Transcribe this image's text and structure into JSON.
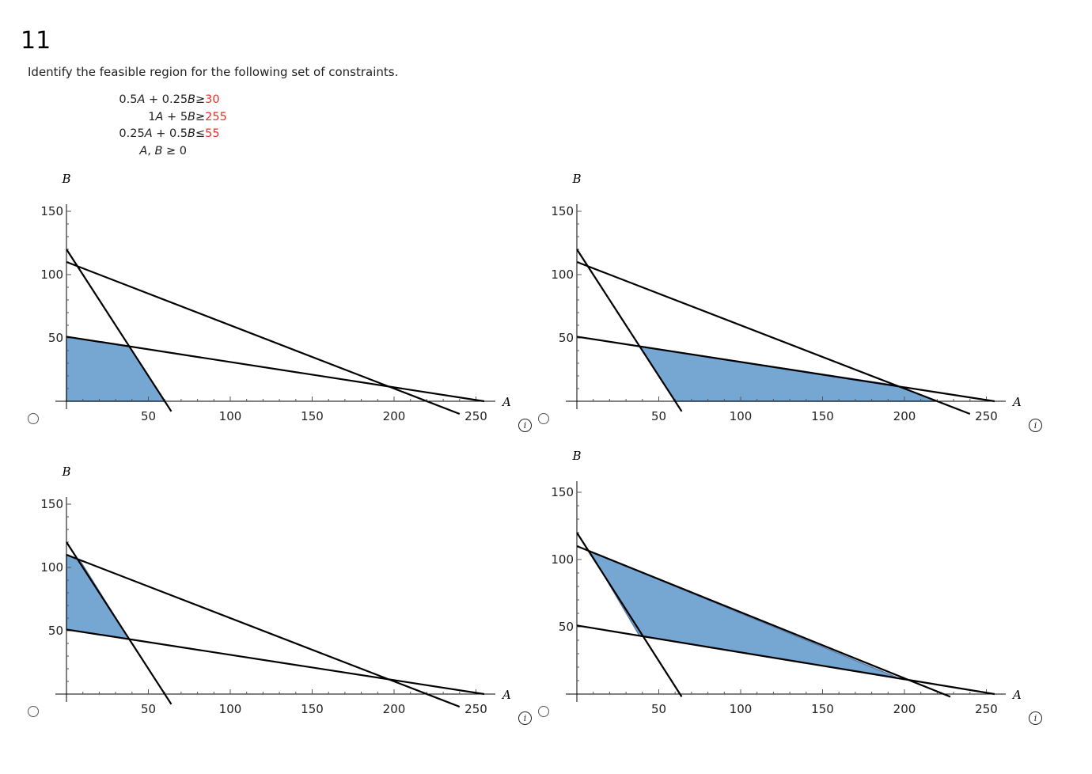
{
  "question": {
    "number": "11",
    "prompt": "Identify the feasible region for the following set of constraints.",
    "constraints": [
      {
        "lhs": "0.5A + 0.25B",
        "op": "≥",
        "rhs": "30"
      },
      {
        "lhs": "1A + 5B",
        "op": "≥",
        "rhs": "255"
      },
      {
        "lhs": "0.25A + 0.5B",
        "op": "≤",
        "rhs": "55"
      },
      {
        "lhs": "A, B ≥ 0",
        "op": "",
        "rhs": ""
      }
    ]
  },
  "colors": {
    "fill": "#76a7d3",
    "fill_edge": "#5b7fa8",
    "line": "#000000",
    "rhs": "#e8302a"
  },
  "icons": {
    "radio": "radio-button-icon",
    "info": "info-icon"
  },
  "chart_data": [
    {
      "type": "line",
      "option": 1,
      "xlabel": "A",
      "ylabel": "B",
      "xlim": [
        0,
        255
      ],
      "ylim": [
        0,
        150
      ],
      "x_ticks": [
        "50",
        "100",
        "150",
        "200",
        "250"
      ],
      "y_ticks": [
        "50",
        "100",
        "150"
      ],
      "lines": [
        {
          "x1": 0,
          "y1": 120,
          "x2": 64,
          "y2": -8
        },
        {
          "x1": 0,
          "y1": 110,
          "x2": 240,
          "y2": -10
        },
        {
          "x1": 0,
          "y1": 51,
          "x2": 255,
          "y2": 0
        }
      ],
      "region": [
        [
          0,
          51
        ],
        [
          38.2,
          43.4
        ],
        [
          60,
          0
        ],
        [
          0,
          0
        ]
      ]
    },
    {
      "type": "line",
      "option": 2,
      "xlabel": "A",
      "ylabel": "B",
      "xlim": [
        0,
        255
      ],
      "ylim": [
        0,
        150
      ],
      "x_ticks": [
        "50",
        "100",
        "150",
        "200",
        "250"
      ],
      "y_ticks": [
        "50",
        "100",
        "150"
      ],
      "lines": [
        {
          "x1": 0,
          "y1": 120,
          "x2": 64,
          "y2": -8
        },
        {
          "x1": 0,
          "y1": 110,
          "x2": 240,
          "y2": -10
        },
        {
          "x1": 0,
          "y1": 51,
          "x2": 255,
          "y2": 0
        }
      ],
      "region": [
        [
          38.2,
          43.4
        ],
        [
          195,
          12.5
        ],
        [
          220,
          0
        ],
        [
          60,
          0
        ]
      ]
    },
    {
      "type": "line",
      "option": 3,
      "xlabel": "A",
      "ylabel": "B",
      "xlim": [
        0,
        255
      ],
      "ylim": [
        0,
        150
      ],
      "x_ticks": [
        "50",
        "100",
        "150",
        "200",
        "250"
      ],
      "y_ticks": [
        "50",
        "100",
        "150"
      ],
      "lines": [
        {
          "x1": 0,
          "y1": 120,
          "x2": 64,
          "y2": -8
        },
        {
          "x1": 0,
          "y1": 110,
          "x2": 240,
          "y2": -10
        },
        {
          "x1": 0,
          "y1": 51,
          "x2": 255,
          "y2": 0
        }
      ],
      "region": [
        [
          0,
          110
        ],
        [
          8,
          106
        ],
        [
          38.2,
          43.4
        ],
        [
          0,
          51
        ]
      ]
    },
    {
      "type": "line",
      "option": 4,
      "xlabel": "A",
      "ylabel": "B",
      "xlim": [
        0,
        255
      ],
      "ylim": [
        0,
        160
      ],
      "x_ticks": [
        "50",
        "100",
        "150",
        "200",
        "250"
      ],
      "y_ticks": [
        "50",
        "100",
        "150"
      ],
      "lines": [
        {
          "x1": 0,
          "y1": 120,
          "x2": 64,
          "y2": -2
        },
        {
          "x1": 0,
          "y1": 110,
          "x2": 228,
          "y2": -2
        },
        {
          "x1": 0,
          "y1": 51,
          "x2": 255,
          "y2": 0
        }
      ],
      "region": [
        [
          8,
          106
        ],
        [
          195,
          12.5
        ],
        [
          38.2,
          43.4
        ]
      ]
    }
  ]
}
